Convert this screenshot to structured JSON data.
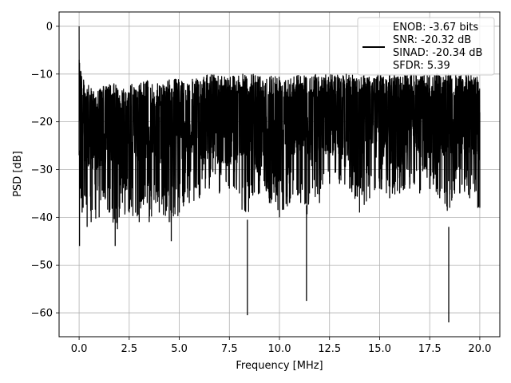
{
  "chart_data": {
    "type": "line",
    "title": "",
    "xlabel": "Frequency [MHz]",
    "ylabel": "PSD [dB]",
    "xlim": [
      -1.0,
      21.0
    ],
    "ylim": [
      -65,
      3
    ],
    "xticks": [
      0.0,
      2.5,
      5.0,
      7.5,
      10.0,
      12.5,
      15.0,
      17.5,
      20.0
    ],
    "xtick_labels": [
      "0.0",
      "2.5",
      "5.0",
      "7.5",
      "10.0",
      "12.5",
      "15.0",
      "17.5",
      "20.0"
    ],
    "yticks": [
      0,
      -10,
      -20,
      -30,
      -40,
      -50,
      -60
    ],
    "ytick_labels": [
      "0",
      "−10",
      "−20",
      "−30",
      "−40",
      "−50",
      "−60"
    ],
    "grid": true,
    "legend": {
      "placement": "upper-right",
      "entries": [
        "ENOB: -3.67 bits",
        "SNR: -20.32 dB",
        "SINAD: -20.34 dB",
        "SFDR: 5.39"
      ]
    },
    "series": [
      {
        "color": "#000000",
        "x": [
          0.0,
          0.02,
          0.05,
          0.1,
          0.15,
          0.2,
          0.4,
          0.6,
          1.0,
          1.5,
          1.8,
          2.0,
          2.5,
          3.0,
          3.4,
          3.5,
          4.0,
          4.5,
          4.6,
          5.0,
          5.5,
          6.0,
          6.5,
          7.0,
          7.5,
          8.0,
          8.4,
          8.5,
          9.0,
          9.5,
          10.0,
          10.5,
          11.0,
          11.35,
          11.5,
          12.0,
          12.5,
          13.0,
          13.5,
          14.0,
          14.5,
          15.0,
          15.5,
          16.0,
          16.5,
          17.0,
          17.5,
          18.0,
          18.45,
          18.5,
          19.0,
          19.5,
          19.9,
          20.0
        ],
        "upper": [
          0,
          -3,
          -6,
          -8,
          -10,
          -11,
          -12,
          -13,
          -13,
          -12,
          -12,
          -13,
          -12,
          -12,
          -11,
          -12,
          -12,
          -11,
          -11,
          -11,
          -11,
          -11,
          -10,
          -10,
          -10,
          -10,
          -10,
          -10,
          -10,
          -10,
          -10,
          -10,
          -10,
          -10,
          -10,
          -10,
          -10,
          -10,
          -10,
          -10,
          -10,
          -10,
          -10,
          -10,
          -10,
          -10,
          -10,
          -10,
          -10,
          -10,
          -10,
          -10,
          -10,
          -12
        ],
        "lower": [
          -27,
          -46,
          -34,
          -36,
          -39,
          -38,
          -42,
          -41,
          -40,
          -39,
          -46,
          -40,
          -39,
          -41,
          -37,
          -41,
          -39,
          -41,
          -45,
          -39,
          -37,
          -36,
          -34,
          -35,
          -34,
          -35,
          -60.5,
          -36,
          -35,
          -37,
          -40,
          -37,
          -35,
          -57.5,
          -35,
          -37,
          -33,
          -33,
          -34,
          -39,
          -36,
          -34,
          -36,
          -35,
          -34,
          -35,
          -34,
          -36,
          -62,
          -38,
          -35,
          -36,
          -38,
          -38
        ]
      }
    ]
  }
}
